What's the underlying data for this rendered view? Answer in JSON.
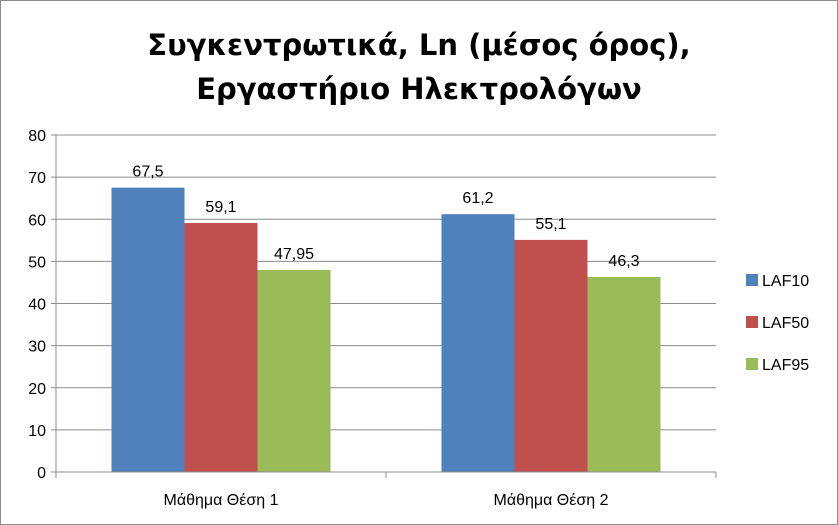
{
  "chart_data": {
    "type": "bar",
    "title_lines": [
      "Συγκεντρωτικά, Ln (μέσος όρος),",
      "Εργαστήριο Ηλεκτρολόγων"
    ],
    "categories": [
      "Μάθημα Θέση 1",
      "Μάθημα Θέση 2"
    ],
    "series": [
      {
        "name": "LAF10",
        "values": [
          67.5,
          61.2
        ],
        "labels": [
          "67,5",
          "61,2"
        ],
        "color": "#4F81BD"
      },
      {
        "name": "LAF50",
        "values": [
          59.1,
          55.1
        ],
        "labels": [
          "59,1",
          "55,1"
        ],
        "color": "#C0504D"
      },
      {
        "name": "LAF95",
        "values": [
          47.95,
          46.3
        ],
        "labels": [
          "47,95",
          "46,3"
        ],
        "color": "#9BBB59"
      }
    ],
    "ylim": [
      0,
      80
    ],
    "yticks": [
      0,
      10,
      20,
      30,
      40,
      50,
      60,
      70,
      80
    ],
    "grid": true,
    "legend_position": "right"
  }
}
